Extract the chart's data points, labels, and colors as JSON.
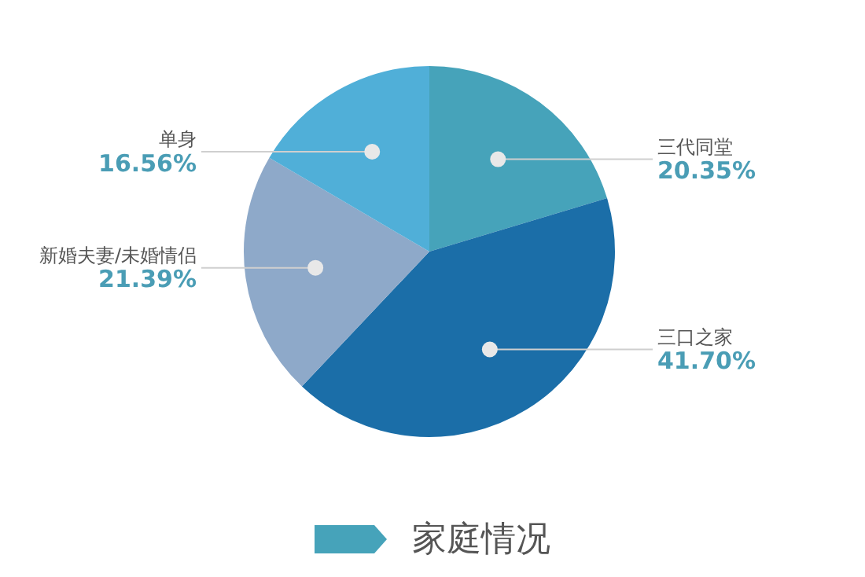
{
  "chart_data": {
    "type": "pie",
    "title": "家庭情况",
    "categories": [
      "三代同堂",
      "三口之家",
      "新婚夫妻/未婚情侣",
      "单身"
    ],
    "values": [
      20.35,
      41.7,
      21.39,
      16.56
    ],
    "value_labels": [
      "20.35%",
      "41.70%",
      "21.39%",
      "16.56%"
    ],
    "colors": [
      "#46a3ba",
      "#1b6ea8",
      "#8ea9c9",
      "#50afd8"
    ],
    "legend": false
  }
}
